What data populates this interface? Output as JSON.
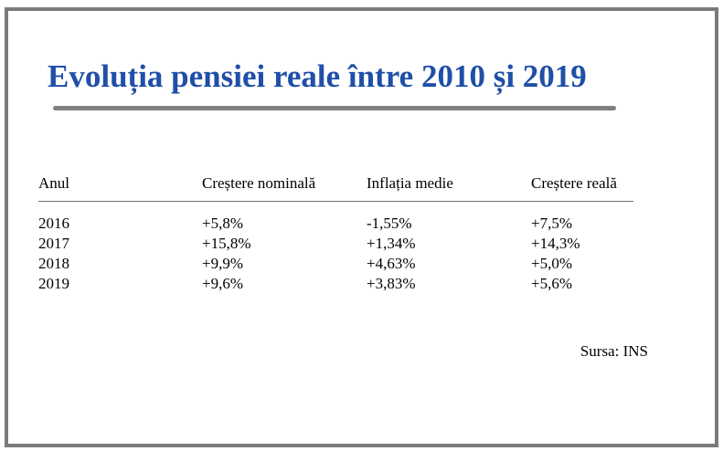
{
  "title": "Evoluția pensiei reale între 2010 și 2019",
  "table": {
    "headers": [
      "Anul",
      "Creștere nominală",
      "Inflația medie",
      "Creștere reală"
    ],
    "rows": [
      [
        "2016",
        "+5,8%",
        "-1,55%",
        "+7,5%"
      ],
      [
        "2017",
        "+15,8%",
        "+1,34%",
        "+14,3%"
      ],
      [
        "2018",
        "+9,9%",
        "+4,63%",
        "+5,0%"
      ],
      [
        "2019",
        "+9,6%",
        "+3,83%",
        "+5,6%"
      ]
    ]
  },
  "source": "Sursa: INS",
  "colors": {
    "title": "#1f4fa8",
    "frame": "#7a7a7a",
    "rule": "#808080"
  }
}
